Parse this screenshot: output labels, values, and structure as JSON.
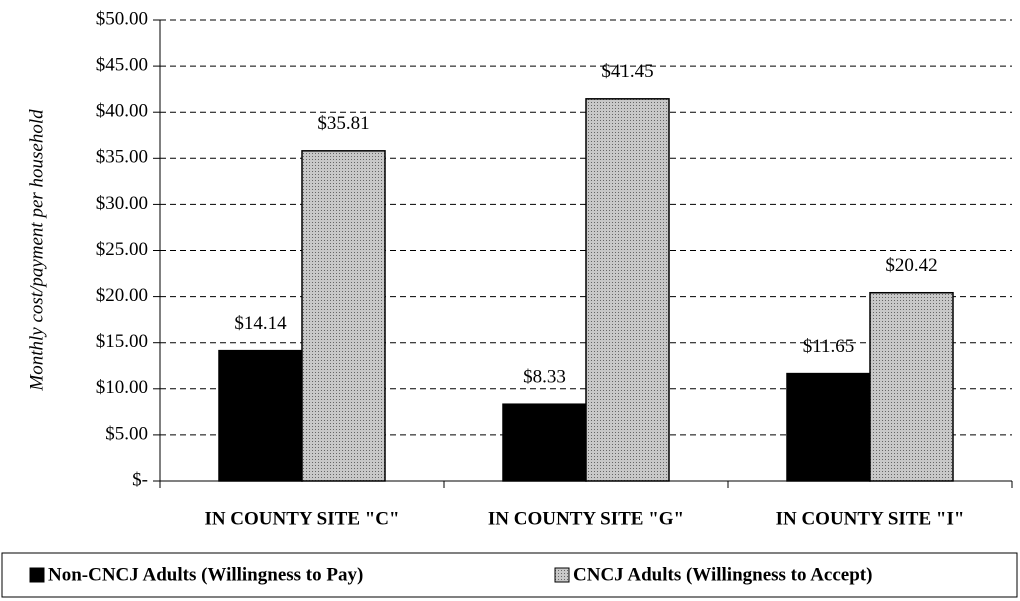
{
  "chart_data": {
    "type": "bar",
    "y_label": "Monthly cost/payment per household",
    "categories": [
      "IN COUNTY SITE \"C\"",
      "IN COUNTY SITE \"G\"",
      "IN COUNTY SITE \"I\""
    ],
    "series": [
      {
        "name": "Non-CNCJ Adults (Willingness to Pay)",
        "color": "#000000",
        "values": [
          14.14,
          8.33,
          11.65
        ],
        "value_labels": [
          "$14.14",
          "$8.33",
          "$11.65"
        ]
      },
      {
        "name": "CNCJ Adults (Willingness to Accept)",
        "color": "#c8c8c8",
        "values": [
          35.81,
          41.45,
          20.42
        ],
        "value_labels": [
          "$35.81",
          "$41.45",
          "$20.42"
        ]
      }
    ],
    "ylim": [
      0,
      50
    ],
    "yticks": [
      {
        "value": 0,
        "label": "$-"
      },
      {
        "value": 5,
        "label": "$5.00"
      },
      {
        "value": 10,
        "label": "$10.00"
      },
      {
        "value": 15,
        "label": "$15.00"
      },
      {
        "value": 20,
        "label": "$20.00"
      },
      {
        "value": 25,
        "label": "$25.00"
      },
      {
        "value": 30,
        "label": "$30.00"
      },
      {
        "value": 35,
        "label": "$35.00"
      },
      {
        "value": 40,
        "label": "$40.00"
      },
      {
        "value": 45,
        "label": "$45.00"
      },
      {
        "value": 50,
        "label": "$50.00"
      }
    ],
    "grid": true,
    "legend": "bottom"
  }
}
